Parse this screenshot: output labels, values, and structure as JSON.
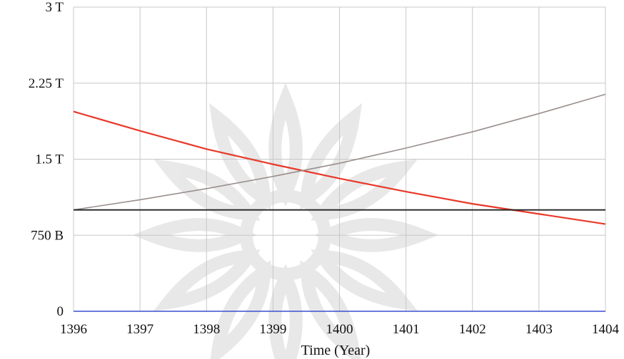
{
  "chart_data": {
    "type": "line",
    "xlabel": "Time (Year)",
    "ylabel": "",
    "x_ticks": [
      "1396",
      "1397",
      "1398",
      "1399",
      "1400",
      "1401",
      "1402",
      "1403",
      "1404"
    ],
    "y_ticks": [
      {
        "value": 0,
        "label": "0"
      },
      {
        "value": 750,
        "label": "750 B"
      },
      {
        "value": 1500,
        "label": "1.5 T"
      },
      {
        "value": 2250,
        "label": "2.25 T"
      },
      {
        "value": 3000,
        "label": "3 T"
      }
    ],
    "xlim": [
      1396,
      1404
    ],
    "ylim": [
      0,
      3000
    ],
    "y_unit": "billions",
    "grid": true,
    "colors": {
      "red": "#e8392a",
      "gray": "#9a8f8c",
      "black": "#222222",
      "grid": "#c8c8c8",
      "baseline": "#3b4fd1"
    },
    "series": [
      {
        "color": "red",
        "x": [
          1396,
          1397,
          1398,
          1399,
          1400,
          1401,
          1402,
          1403,
          1404
        ],
        "values": [
          1970,
          1780,
          1600,
          1450,
          1310,
          1180,
          1060,
          960,
          860
        ]
      },
      {
        "color": "gray",
        "x": [
          1396,
          1397,
          1398,
          1399,
          1400,
          1401,
          1402,
          1403,
          1404
        ],
        "values": [
          1000,
          1100,
          1210,
          1330,
          1460,
          1610,
          1770,
          1950,
          2140
        ]
      },
      {
        "color": "black",
        "x": [
          1396,
          1404
        ],
        "values": [
          1000,
          1000
        ]
      }
    ]
  }
}
